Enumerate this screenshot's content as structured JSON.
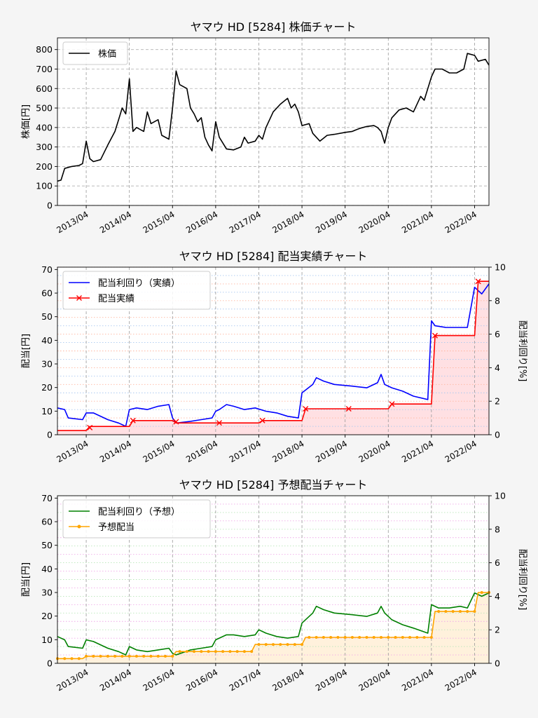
{
  "colors": {
    "price": "#000000",
    "yield_actual": "#0000ff",
    "dividend_actual": "#ff0000",
    "yield_forecast": "#008000",
    "dividend_forecast": "#ffa500",
    "fill_actual": "#ffe0e3",
    "fill_forecast": "#fff1dc"
  },
  "chart_data": [
    {
      "type": "line",
      "title": "ヤマウ HD [5284]  株価チャート",
      "ylabel": "株価[円]",
      "xlim": [
        "2012-08",
        "2022-08"
      ],
      "ylim": [
        0,
        860
      ],
      "yticks": [
        0,
        100,
        200,
        300,
        400,
        500,
        600,
        700,
        800
      ],
      "xticks": [
        "2013/04",
        "2014/04",
        "2015/04",
        "2016/04",
        "2017/04",
        "2018/04",
        "2019/04",
        "2020/04",
        "2021/04",
        "2022/04"
      ],
      "grid": true,
      "legend": "top-left",
      "series": [
        {
          "name": "株価",
          "points": [
            [
              "2012-08",
              125
            ],
            [
              "2012-09",
              130
            ],
            [
              "2012-10",
              190
            ],
            [
              "2012-12",
              200
            ],
            [
              "2013-02",
              205
            ],
            [
              "2013-03",
              215
            ],
            [
              "2013-04",
              330
            ],
            [
              "2013-05",
              240
            ],
            [
              "2013-06",
              225
            ],
            [
              "2013-08",
              235
            ],
            [
              "2013-10",
              310
            ],
            [
              "2013-12",
              380
            ],
            [
              "2014-01",
              440
            ],
            [
              "2014-02",
              500
            ],
            [
              "2014-03",
              470
            ],
            [
              "2014-04",
              650
            ],
            [
              "2014-05",
              380
            ],
            [
              "2014-06",
              400
            ],
            [
              "2014-08",
              380
            ],
            [
              "2014-09",
              480
            ],
            [
              "2014-10",
              420
            ],
            [
              "2014-12",
              440
            ],
            [
              "2015-01",
              360
            ],
            [
              "2015-03",
              340
            ],
            [
              "2015-04",
              500
            ],
            [
              "2015-05",
              690
            ],
            [
              "2015-06",
              620
            ],
            [
              "2015-08",
              600
            ],
            [
              "2015-09",
              500
            ],
            [
              "2015-10",
              470
            ],
            [
              "2015-11",
              430
            ],
            [
              "2015-12",
              450
            ],
            [
              "2016-01",
              350
            ],
            [
              "2016-02",
              310
            ],
            [
              "2016-03",
              280
            ],
            [
              "2016-04",
              430
            ],
            [
              "2016-05",
              350
            ],
            [
              "2016-07",
              290
            ],
            [
              "2016-09",
              285
            ],
            [
              "2016-11",
              300
            ],
            [
              "2016-12",
              350
            ],
            [
              "2017-01",
              320
            ],
            [
              "2017-03",
              330
            ],
            [
              "2017-04",
              360
            ],
            [
              "2017-05",
              340
            ],
            [
              "2017-06",
              400
            ],
            [
              "2017-08",
              480
            ],
            [
              "2017-10",
              520
            ],
            [
              "2017-12",
              550
            ],
            [
              "2018-01",
              500
            ],
            [
              "2018-02",
              520
            ],
            [
              "2018-03",
              480
            ],
            [
              "2018-04",
              410
            ],
            [
              "2018-06",
              420
            ],
            [
              "2018-07",
              370
            ],
            [
              "2018-09",
              330
            ],
            [
              "2018-11",
              360
            ],
            [
              "2019-01",
              365
            ],
            [
              "2019-04",
              375
            ],
            [
              "2019-06",
              380
            ],
            [
              "2019-08",
              395
            ],
            [
              "2019-10",
              405
            ],
            [
              "2019-12",
              410
            ],
            [
              "2020-01",
              400
            ],
            [
              "2020-02",
              380
            ],
            [
              "2020-03",
              320
            ],
            [
              "2020-04",
              400
            ],
            [
              "2020-05",
              450
            ],
            [
              "2020-07",
              490
            ],
            [
              "2020-09",
              500
            ],
            [
              "2020-11",
              480
            ],
            [
              "2021-01",
              560
            ],
            [
              "2021-02",
              540
            ],
            [
              "2021-03",
              600
            ],
            [
              "2021-04",
              660
            ],
            [
              "2021-05",
              700
            ],
            [
              "2021-07",
              700
            ],
            [
              "2021-09",
              680
            ],
            [
              "2021-11",
              680
            ],
            [
              "2022-01",
              700
            ],
            [
              "2022-02",
              780
            ],
            [
              "2022-04",
              770
            ],
            [
              "2022-05",
              740
            ],
            [
              "2022-07",
              750
            ],
            [
              "2022-08",
              720
            ]
          ]
        }
      ]
    },
    {
      "type": "line",
      "title": "ヤマウ HD [5284]  配当実績チャート",
      "ylabel": "配当[円]",
      "y2label": "配当利回り[%]",
      "xlim": [
        "2012-08",
        "2022-08"
      ],
      "ylim": [
        0,
        71
      ],
      "yticks": [
        0,
        10,
        20,
        30,
        40,
        50,
        60,
        70
      ],
      "y2lim": [
        0,
        10
      ],
      "y2ticks": [
        0,
        2,
        4,
        6,
        8,
        10
      ],
      "xticks": [
        "2013/04",
        "2014/04",
        "2015/04",
        "2016/04",
        "2017/04",
        "2018/04",
        "2019/04",
        "2020/04",
        "2021/04",
        "2022/04"
      ],
      "grid": true,
      "legend": "top-left",
      "series": [
        {
          "name": "配当利回り（実績）",
          "axis": "right",
          "points": [
            [
              "2012-08",
              1.6
            ],
            [
              "2012-10",
              1.5
            ],
            [
              "2012-11",
              1.0
            ],
            [
              "2013-03",
              0.9
            ],
            [
              "2013-04",
              1.3
            ],
            [
              "2013-06",
              1.3
            ],
            [
              "2013-10",
              0.9
            ],
            [
              "2014-01",
              0.7
            ],
            [
              "2014-03",
              0.5
            ],
            [
              "2014-04",
              1.5
            ],
            [
              "2014-06",
              1.6
            ],
            [
              "2014-09",
              1.5
            ],
            [
              "2014-12",
              1.7
            ],
            [
              "2015-03",
              1.8
            ],
            [
              "2015-04",
              1.0
            ],
            [
              "2015-05",
              0.7
            ],
            [
              "2015-09",
              0.8
            ],
            [
              "2015-12",
              0.9
            ],
            [
              "2016-03",
              1.0
            ],
            [
              "2016-04",
              1.4
            ],
            [
              "2016-05",
              1.5
            ],
            [
              "2016-07",
              1.8
            ],
            [
              "2016-09",
              1.7
            ],
            [
              "2016-12",
              1.5
            ],
            [
              "2017-03",
              1.6
            ],
            [
              "2017-06",
              1.4
            ],
            [
              "2017-09",
              1.3
            ],
            [
              "2017-12",
              1.1
            ],
            [
              "2018-03",
              1.0
            ],
            [
              "2018-04",
              2.5
            ],
            [
              "2018-07",
              3.0
            ],
            [
              "2018-08",
              3.4
            ],
            [
              "2018-10",
              3.2
            ],
            [
              "2019-01",
              3.0
            ],
            [
              "2019-06",
              2.9
            ],
            [
              "2019-10",
              2.8
            ],
            [
              "2020-01",
              3.1
            ],
            [
              "2020-02",
              3.6
            ],
            [
              "2020-03",
              3.0
            ],
            [
              "2020-05",
              2.8
            ],
            [
              "2020-08",
              2.6
            ],
            [
              "2020-11",
              2.3
            ],
            [
              "2021-03",
              2.1
            ],
            [
              "2021-04",
              6.8
            ],
            [
              "2021-05",
              6.5
            ],
            [
              "2021-08",
              6.4
            ],
            [
              "2021-12",
              6.4
            ],
            [
              "2022-02",
              6.4
            ],
            [
              "2022-04",
              8.8
            ],
            [
              "2022-06",
              8.4
            ],
            [
              "2022-08",
              9.0
            ]
          ]
        },
        {
          "name": "配当実績",
          "axis": "left",
          "step": true,
          "points": [
            [
              "2012-08",
              1.8
            ],
            [
              "2013-04",
              1.8
            ],
            [
              "2013-05",
              3.5
            ],
            [
              "2014-04",
              3.5
            ],
            [
              "2014-05",
              6.0
            ],
            [
              "2015-04",
              6.0
            ],
            [
              "2015-05",
              5.0
            ],
            [
              "2017-04",
              5.0
            ],
            [
              "2017-05",
              6.0
            ],
            [
              "2018-04",
              6.0
            ],
            [
              "2018-05",
              11.0
            ],
            [
              "2020-04",
              11.0
            ],
            [
              "2020-05",
              13.0
            ],
            [
              "2021-04",
              13.0
            ],
            [
              "2021-05",
              42.0
            ],
            [
              "2022-04",
              42.0
            ],
            [
              "2022-05",
              65.0
            ],
            [
              "2022-08",
              65.0
            ]
          ],
          "markers": [
            [
              "2013-05",
              3.0
            ],
            [
              "2014-05",
              6.0
            ],
            [
              "2015-05",
              5.5
            ],
            [
              "2016-05",
              5.0
            ],
            [
              "2017-05",
              6.0
            ],
            [
              "2018-05",
              11.0
            ],
            [
              "2019-05",
              11.0
            ],
            [
              "2020-05",
              13.0
            ],
            [
              "2021-05",
              42.0
            ],
            [
              "2022-05",
              65.0
            ]
          ]
        }
      ]
    },
    {
      "type": "line",
      "title": "ヤマウ HD [5284]  予想配当チャート",
      "ylabel": "配当[円]",
      "y2label": "配当利回り[%]",
      "xlim": [
        "2012-08",
        "2022-08"
      ],
      "ylim": [
        0,
        71
      ],
      "yticks": [
        0,
        10,
        20,
        30,
        40,
        50,
        60,
        70
      ],
      "y2lim": [
        0,
        10
      ],
      "y2ticks": [
        0,
        2,
        4,
        6,
        8,
        10
      ],
      "xticks": [
        "2013/04",
        "2014/04",
        "2015/04",
        "2016/04",
        "2017/04",
        "2018/04",
        "2019/04",
        "2020/04",
        "2021/04",
        "2022/04"
      ],
      "grid": true,
      "legend": "top-left",
      "series": [
        {
          "name": "配当利回り（予想）",
          "axis": "right",
          "points": [
            [
              "2012-08",
              1.6
            ],
            [
              "2012-10",
              1.4
            ],
            [
              "2012-11",
              1.0
            ],
            [
              "2013-03",
              0.9
            ],
            [
              "2013-04",
              1.4
            ],
            [
              "2013-06",
              1.3
            ],
            [
              "2013-10",
              0.9
            ],
            [
              "2014-01",
              0.7
            ],
            [
              "2014-03",
              0.5
            ],
            [
              "2014-04",
              1.0
            ],
            [
              "2014-06",
              0.8
            ],
            [
              "2014-09",
              0.7
            ],
            [
              "2014-12",
              0.8
            ],
            [
              "2015-03",
              0.9
            ],
            [
              "2015-04",
              0.6
            ],
            [
              "2015-05",
              0.5
            ],
            [
              "2015-09",
              0.8
            ],
            [
              "2015-12",
              0.9
            ],
            [
              "2016-03",
              1.0
            ],
            [
              "2016-04",
              1.4
            ],
            [
              "2016-05",
              1.5
            ],
            [
              "2016-07",
              1.7
            ],
            [
              "2016-09",
              1.7
            ],
            [
              "2016-12",
              1.6
            ],
            [
              "2017-03",
              1.7
            ],
            [
              "2017-04",
              2.0
            ],
            [
              "2017-06",
              1.8
            ],
            [
              "2017-09",
              1.6
            ],
            [
              "2017-12",
              1.5
            ],
            [
              "2018-03",
              1.6
            ],
            [
              "2018-04",
              2.4
            ],
            [
              "2018-07",
              3.0
            ],
            [
              "2018-08",
              3.4
            ],
            [
              "2018-10",
              3.2
            ],
            [
              "2019-01",
              3.0
            ],
            [
              "2019-06",
              2.9
            ],
            [
              "2019-10",
              2.8
            ],
            [
              "2020-01",
              3.0
            ],
            [
              "2020-02",
              3.4
            ],
            [
              "2020-03",
              3.0
            ],
            [
              "2020-05",
              2.6
            ],
            [
              "2020-08",
              2.3
            ],
            [
              "2020-11",
              2.1
            ],
            [
              "2021-03",
              1.8
            ],
            [
              "2021-04",
              3.5
            ],
            [
              "2021-06",
              3.3
            ],
            [
              "2021-09",
              3.3
            ],
            [
              "2021-12",
              3.4
            ],
            [
              "2022-02",
              3.3
            ],
            [
              "2022-04",
              4.2
            ],
            [
              "2022-06",
              4.0
            ],
            [
              "2022-08",
              4.2
            ]
          ]
        },
        {
          "name": "予想配当",
          "axis": "left",
          "step": true,
          "points": [
            [
              "2012-08",
              2.0
            ],
            [
              "2013-03",
              2.0
            ],
            [
              "2013-04",
              3.0
            ],
            [
              "2014-04",
              3.0
            ],
            [
              "2014-05",
              3.0
            ],
            [
              "2015-04",
              3.0
            ],
            [
              "2015-05",
              5.0
            ],
            [
              "2017-02",
              5.0
            ],
            [
              "2017-03",
              8.0
            ],
            [
              "2018-04",
              8.0
            ],
            [
              "2018-05",
              11.0
            ],
            [
              "2021-04",
              11.0
            ],
            [
              "2021-05",
              22.0
            ],
            [
              "2022-04",
              22.0
            ],
            [
              "2022-05",
              30.0
            ],
            [
              "2022-08",
              30.0
            ]
          ]
        }
      ]
    }
  ]
}
